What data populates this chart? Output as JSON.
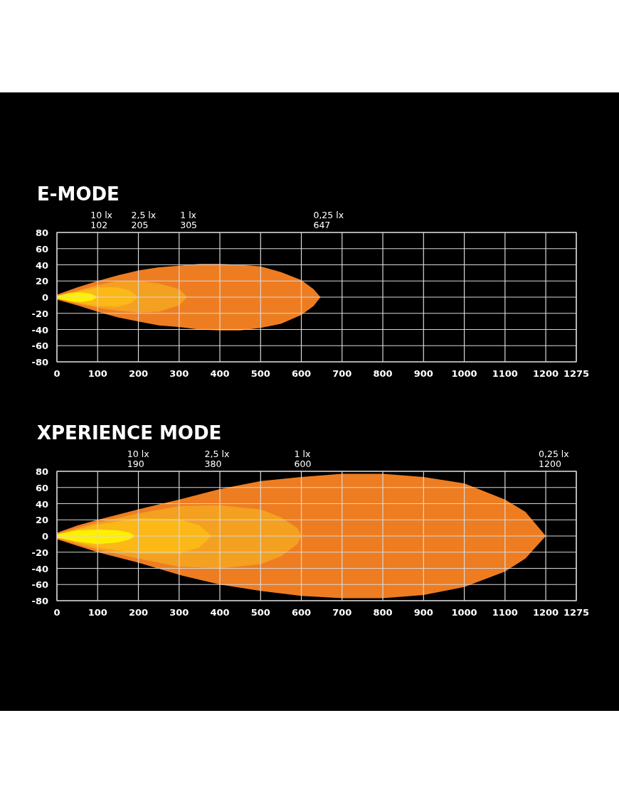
{
  "chart_data": [
    {
      "type": "line",
      "title": "E-MODE",
      "xlim": [
        0,
        1275
      ],
      "ylim": [
        -80,
        80
      ],
      "xticks": [
        0,
        100,
        200,
        300,
        400,
        500,
        600,
        700,
        800,
        900,
        1000,
        1100,
        1200,
        1275
      ],
      "yticks": [
        -80,
        -60,
        -40,
        -20,
        0,
        20,
        40,
        60,
        80
      ],
      "grid": true,
      "annotations": [
        "10 lx\n102",
        "2,5 lx\n205",
        "1 lx\n305",
        "0,25 lx\n647"
      ],
      "series": [
        {
          "color": "#ee7d21",
          "x": [
            0,
            50,
            100,
            150,
            200,
            250,
            300,
            350,
            400,
            450,
            500,
            550,
            600,
            630,
            647
          ],
          "values": [
            null,
            null,
            null,
            null,
            null,
            null,
            null,
            null,
            null,
            null,
            null,
            null,
            null,
            null,
            null
          ],
          "upper": [
            3,
            12,
            20,
            27,
            33,
            37,
            39,
            41,
            41,
            40,
            38,
            31,
            21,
            10,
            0
          ],
          "lower": [
            -3,
            -10,
            -18,
            -25,
            -30,
            -35,
            -37,
            -40,
            -41,
            -41,
            -38,
            -33,
            -22,
            -11,
            0
          ]
        },
        {
          "color": "#f4a020",
          "x": [
            0,
            50,
            100,
            150,
            200,
            250,
            300,
            320
          ],
          "values": [
            null,
            null,
            null,
            null,
            null,
            null,
            null,
            null
          ],
          "upper": [
            2,
            8,
            15,
            20,
            20,
            17,
            10,
            0
          ],
          "lower": [
            -2,
            -8,
            -13,
            -17,
            -19,
            -18,
            -10,
            0
          ]
        },
        {
          "color": "#fbb817",
          "x": [
            0,
            50,
            100,
            150,
            180,
            200
          ],
          "values": [
            null,
            null,
            null,
            null,
            null,
            null
          ],
          "upper": [
            2,
            7,
            12,
            12,
            8,
            0
          ],
          "lower": [
            -2,
            -7,
            -11,
            -12,
            -8,
            0
          ]
        },
        {
          "color": "#fff000",
          "x": [
            0,
            30,
            60,
            85,
            100
          ],
          "values": [
            null,
            null,
            null,
            null,
            null
          ],
          "upper": [
            1,
            5,
            6,
            4,
            0
          ],
          "lower": [
            -1,
            -5,
            -6,
            -4,
            0
          ]
        }
      ]
    },
    {
      "type": "line",
      "title": "XPERIENCE MODE",
      "xlim": [
        0,
        1275
      ],
      "ylim": [
        -80,
        80
      ],
      "xticks": [
        0,
        100,
        200,
        300,
        400,
        500,
        600,
        700,
        800,
        900,
        1000,
        1100,
        1200,
        1275
      ],
      "yticks": [
        -80,
        -60,
        -40,
        -20,
        0,
        20,
        40,
        60,
        80
      ],
      "grid": true,
      "annotations": [
        "10 lx\n190",
        "2,5 lx\n380",
        "1 lx\n600",
        "0,25 lx\n1200"
      ],
      "series": [
        {
          "color": "#ee7d21",
          "x": [
            0,
            50,
            100,
            200,
            300,
            400,
            500,
            600,
            700,
            800,
            900,
            1000,
            1100,
            1150,
            1200
          ],
          "values": [
            null,
            null,
            null,
            null,
            null,
            null,
            null,
            null,
            null,
            null,
            null,
            null,
            null,
            null,
            null
          ],
          "upper": [
            4,
            13,
            20,
            33,
            45,
            58,
            68,
            73,
            77,
            77,
            73,
            65,
            45,
            30,
            0
          ],
          "lower": [
            -4,
            -12,
            -20,
            -33,
            -48,
            -60,
            -68,
            -74,
            -77,
            -77,
            -73,
            -63,
            -44,
            -28,
            0
          ]
        },
        {
          "color": "#f4a020",
          "x": [
            0,
            50,
            100,
            200,
            300,
            400,
            500,
            550,
            590,
            600
          ],
          "values": [
            null,
            null,
            null,
            null,
            null,
            null,
            null,
            null,
            null,
            null
          ],
          "upper": [
            3,
            10,
            17,
            28,
            37,
            38,
            33,
            23,
            10,
            0
          ],
          "lower": [
            -3,
            -10,
            -17,
            -28,
            -38,
            -40,
            -35,
            -25,
            -10,
            0
          ]
        },
        {
          "color": "#fbb817",
          "x": [
            0,
            50,
            100,
            200,
            300,
            350,
            380
          ],
          "values": [
            null,
            null,
            null,
            null,
            null,
            null,
            null
          ],
          "upper": [
            2,
            8,
            14,
            22,
            21,
            13,
            0
          ],
          "lower": [
            -2,
            -8,
            -14,
            -22,
            -22,
            -14,
            0
          ]
        },
        {
          "color": "#fff000",
          "x": [
            0,
            50,
            100,
            150,
            180,
            190
          ],
          "values": [
            null,
            null,
            null,
            null,
            null,
            null
          ],
          "upper": [
            2,
            7,
            8,
            7,
            4,
            0
          ],
          "lower": [
            -2,
            -7,
            -10,
            -8,
            -4,
            0
          ]
        }
      ]
    }
  ]
}
